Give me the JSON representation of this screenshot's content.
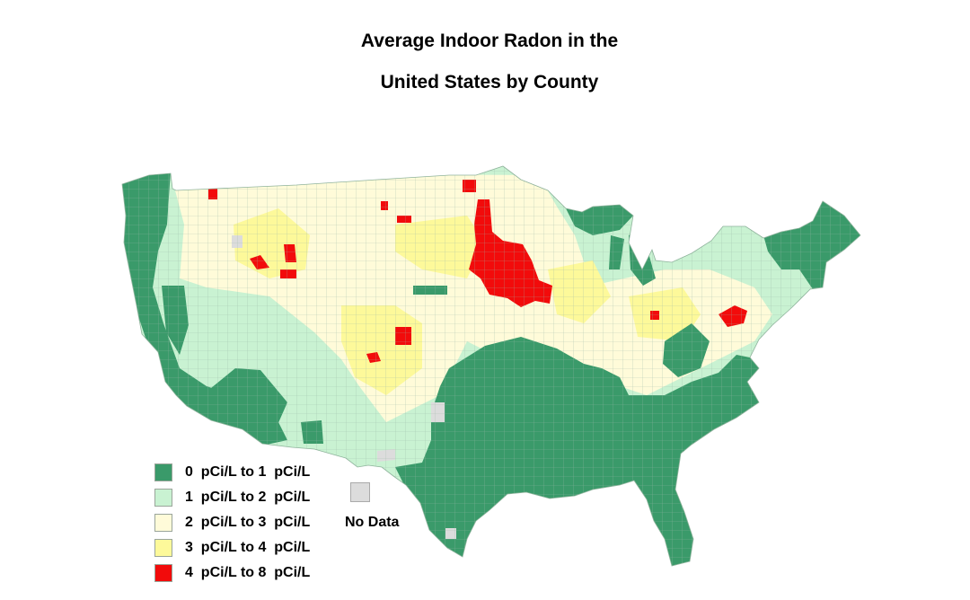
{
  "title": {
    "line1": "Average Indoor Radon in the",
    "line2": "United States by County"
  },
  "colors": {
    "level0": "#3a9a6a",
    "level1": "#c9f2d2",
    "level2": "#fffbd9",
    "level3": "#fdf99a",
    "level4": "#f20b0b",
    "no_data": "#dcdcdc",
    "county_border": "#9bb8a6"
  },
  "legend": {
    "items": [
      {
        "label": "0  pCi/L to 1  pCi/L",
        "color_key": "level0"
      },
      {
        "label": "1  pCi/L to 2  pCi/L",
        "color_key": "level1"
      },
      {
        "label": "2  pCi/L to 3  pCi/L",
        "color_key": "level2"
      },
      {
        "label": "3  pCi/L to 4  pCi/L",
        "color_key": "level3"
      },
      {
        "label": "4  pCi/L to 8  pCi/L",
        "color_key": "level4"
      }
    ],
    "no_data_label": "No Data"
  }
}
